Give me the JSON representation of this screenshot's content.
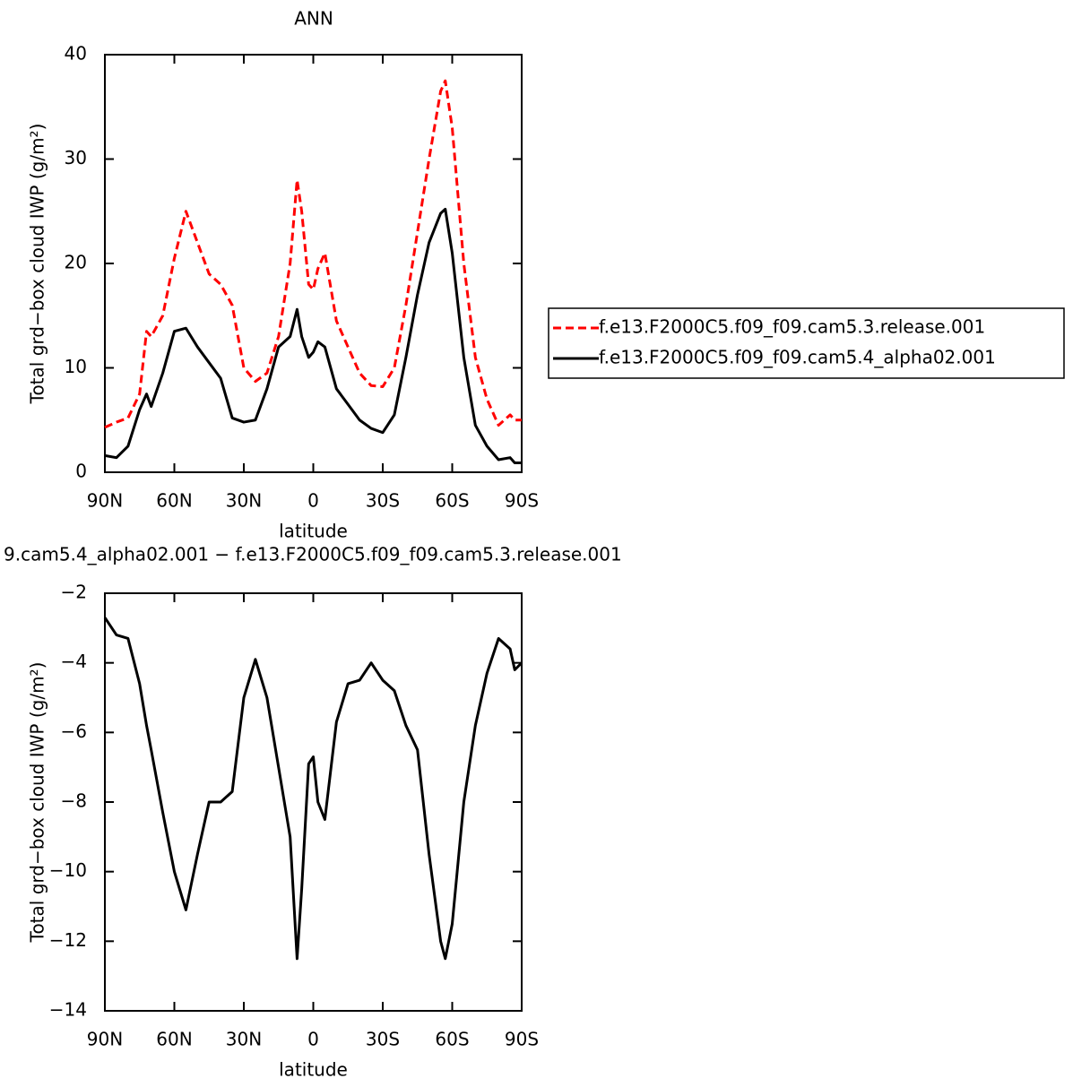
{
  "chart_data": [
    {
      "type": "line",
      "title": "ANN",
      "xlabel": "latitude",
      "ylabel": "Total grd−box cloud IWP (g/m²)",
      "x": [
        90,
        85,
        80,
        75,
        72,
        70,
        65,
        60,
        55,
        50,
        45,
        40,
        35,
        30,
        25,
        20,
        15,
        10,
        7,
        5,
        2,
        0,
        -2,
        -5,
        -10,
        -15,
        -20,
        -25,
        -30,
        -35,
        -40,
        -45,
        -50,
        -55,
        -57,
        -60,
        -65,
        -70,
        -75,
        -80,
        -85,
        -87,
        -90
      ],
      "xlim": [
        90,
        -90
      ],
      "xticks": [
        {
          "value": 90,
          "label": "90N"
        },
        {
          "value": 60,
          "label": "60N"
        },
        {
          "value": 30,
          "label": "30N"
        },
        0,
        {
          "value": -30,
          "label": "30S"
        },
        {
          "value": -60,
          "label": "60S"
        },
        {
          "value": -90,
          "label": "90S"
        }
      ],
      "ylim": [
        0,
        40
      ],
      "yticks": [
        0,
        10,
        20,
        30,
        40
      ],
      "legend": "right",
      "series": [
        {
          "name": "f.e13.F2000C5.f09_f09.cam5.3.release.001",
          "color": "#ff0000",
          "dashed": true,
          "values": [
            4.3,
            4.8,
            5.2,
            7.5,
            13.5,
            13,
            15,
            20.5,
            25,
            22,
            19,
            18,
            16,
            10,
            8.7,
            9.5,
            13,
            20,
            28,
            25,
            18,
            17.5,
            19.5,
            21,
            14.5,
            12,
            9.5,
            8.3,
            8.2,
            10,
            16,
            23,
            30,
            36.5,
            37.5,
            33,
            20,
            11,
            7,
            4.5,
            5.5,
            5,
            5
          ]
        },
        {
          "name": "f.e13.F2000C5.f09_f09.cam5.4_alpha02.001",
          "color": "#000000",
          "dashed": false,
          "values": [
            1.6,
            1.4,
            2.5,
            6,
            7.5,
            6.3,
            9.5,
            13.5,
            13.8,
            12,
            10.5,
            9,
            5.2,
            4.8,
            5,
            8,
            12,
            13,
            15.6,
            13,
            11,
            11.5,
            12.5,
            12,
            8,
            6.5,
            5,
            4.2,
            3.8,
            5.5,
            11,
            17,
            22,
            24.8,
            25.2,
            21,
            11,
            4.5,
            2.5,
            1.2,
            1.4,
            0.9,
            0.9
          ]
        }
      ]
    },
    {
      "type": "line",
      "title": "9.cam5.4_alpha02.001 − f.e13.F2000C5.f09_f09.cam5.3.release.001",
      "xlabel": "latitude",
      "ylabel": "Total grd−box cloud IWP (g/m²)",
      "x": [
        90,
        85,
        80,
        75,
        72,
        70,
        65,
        60,
        55,
        50,
        45,
        40,
        35,
        30,
        25,
        20,
        15,
        10,
        7,
        5,
        2,
        0,
        -2,
        -5,
        -10,
        -15,
        -20,
        -25,
        -30,
        -35,
        -40,
        -45,
        -50,
        -55,
        -57,
        -60,
        -65,
        -70,
        -75,
        -80,
        -85,
        -87,
        -90
      ],
      "xlim": [
        90,
        -90
      ],
      "xticks": [
        {
          "value": 90,
          "label": "90N"
        },
        {
          "value": 60,
          "label": "60N"
        },
        {
          "value": 30,
          "label": "30N"
        },
        0,
        {
          "value": -30,
          "label": "30S"
        },
        {
          "value": -60,
          "label": "60S"
        },
        {
          "value": -90,
          "label": "90S"
        }
      ],
      "ylim": [
        -14,
        -2
      ],
      "yticks": [
        {
          "value": -14,
          "label": "−14"
        },
        {
          "value": -12,
          "label": "−12"
        },
        {
          "value": -10,
          "label": "−10"
        },
        {
          "value": -8,
          "label": "−8"
        },
        {
          "value": -6,
          "label": "−6"
        },
        {
          "value": -4,
          "label": "−4"
        },
        {
          "value": -2,
          "label": "−2"
        }
      ],
      "series": [
        {
          "color": "#000000",
          "dashed": false,
          "values": [
            -2.7,
            -3.2,
            -3.3,
            -4.6,
            -5.8,
            -6.5,
            -8.3,
            -10,
            -11.1,
            -9.5,
            -8,
            -8,
            -7.7,
            -5,
            -3.9,
            -5,
            -7,
            -9,
            -12.5,
            -10.5,
            -6.9,
            -6.7,
            -8,
            -8.5,
            -5.7,
            -4.6,
            -4.5,
            -4,
            -4.5,
            -4.8,
            -5.8,
            -6.5,
            -9.5,
            -12,
            -12.5,
            -11.5,
            -8,
            -5.8,
            -4.3,
            -3.3,
            -3.6,
            -4.2,
            -4
          ]
        }
      ]
    }
  ]
}
